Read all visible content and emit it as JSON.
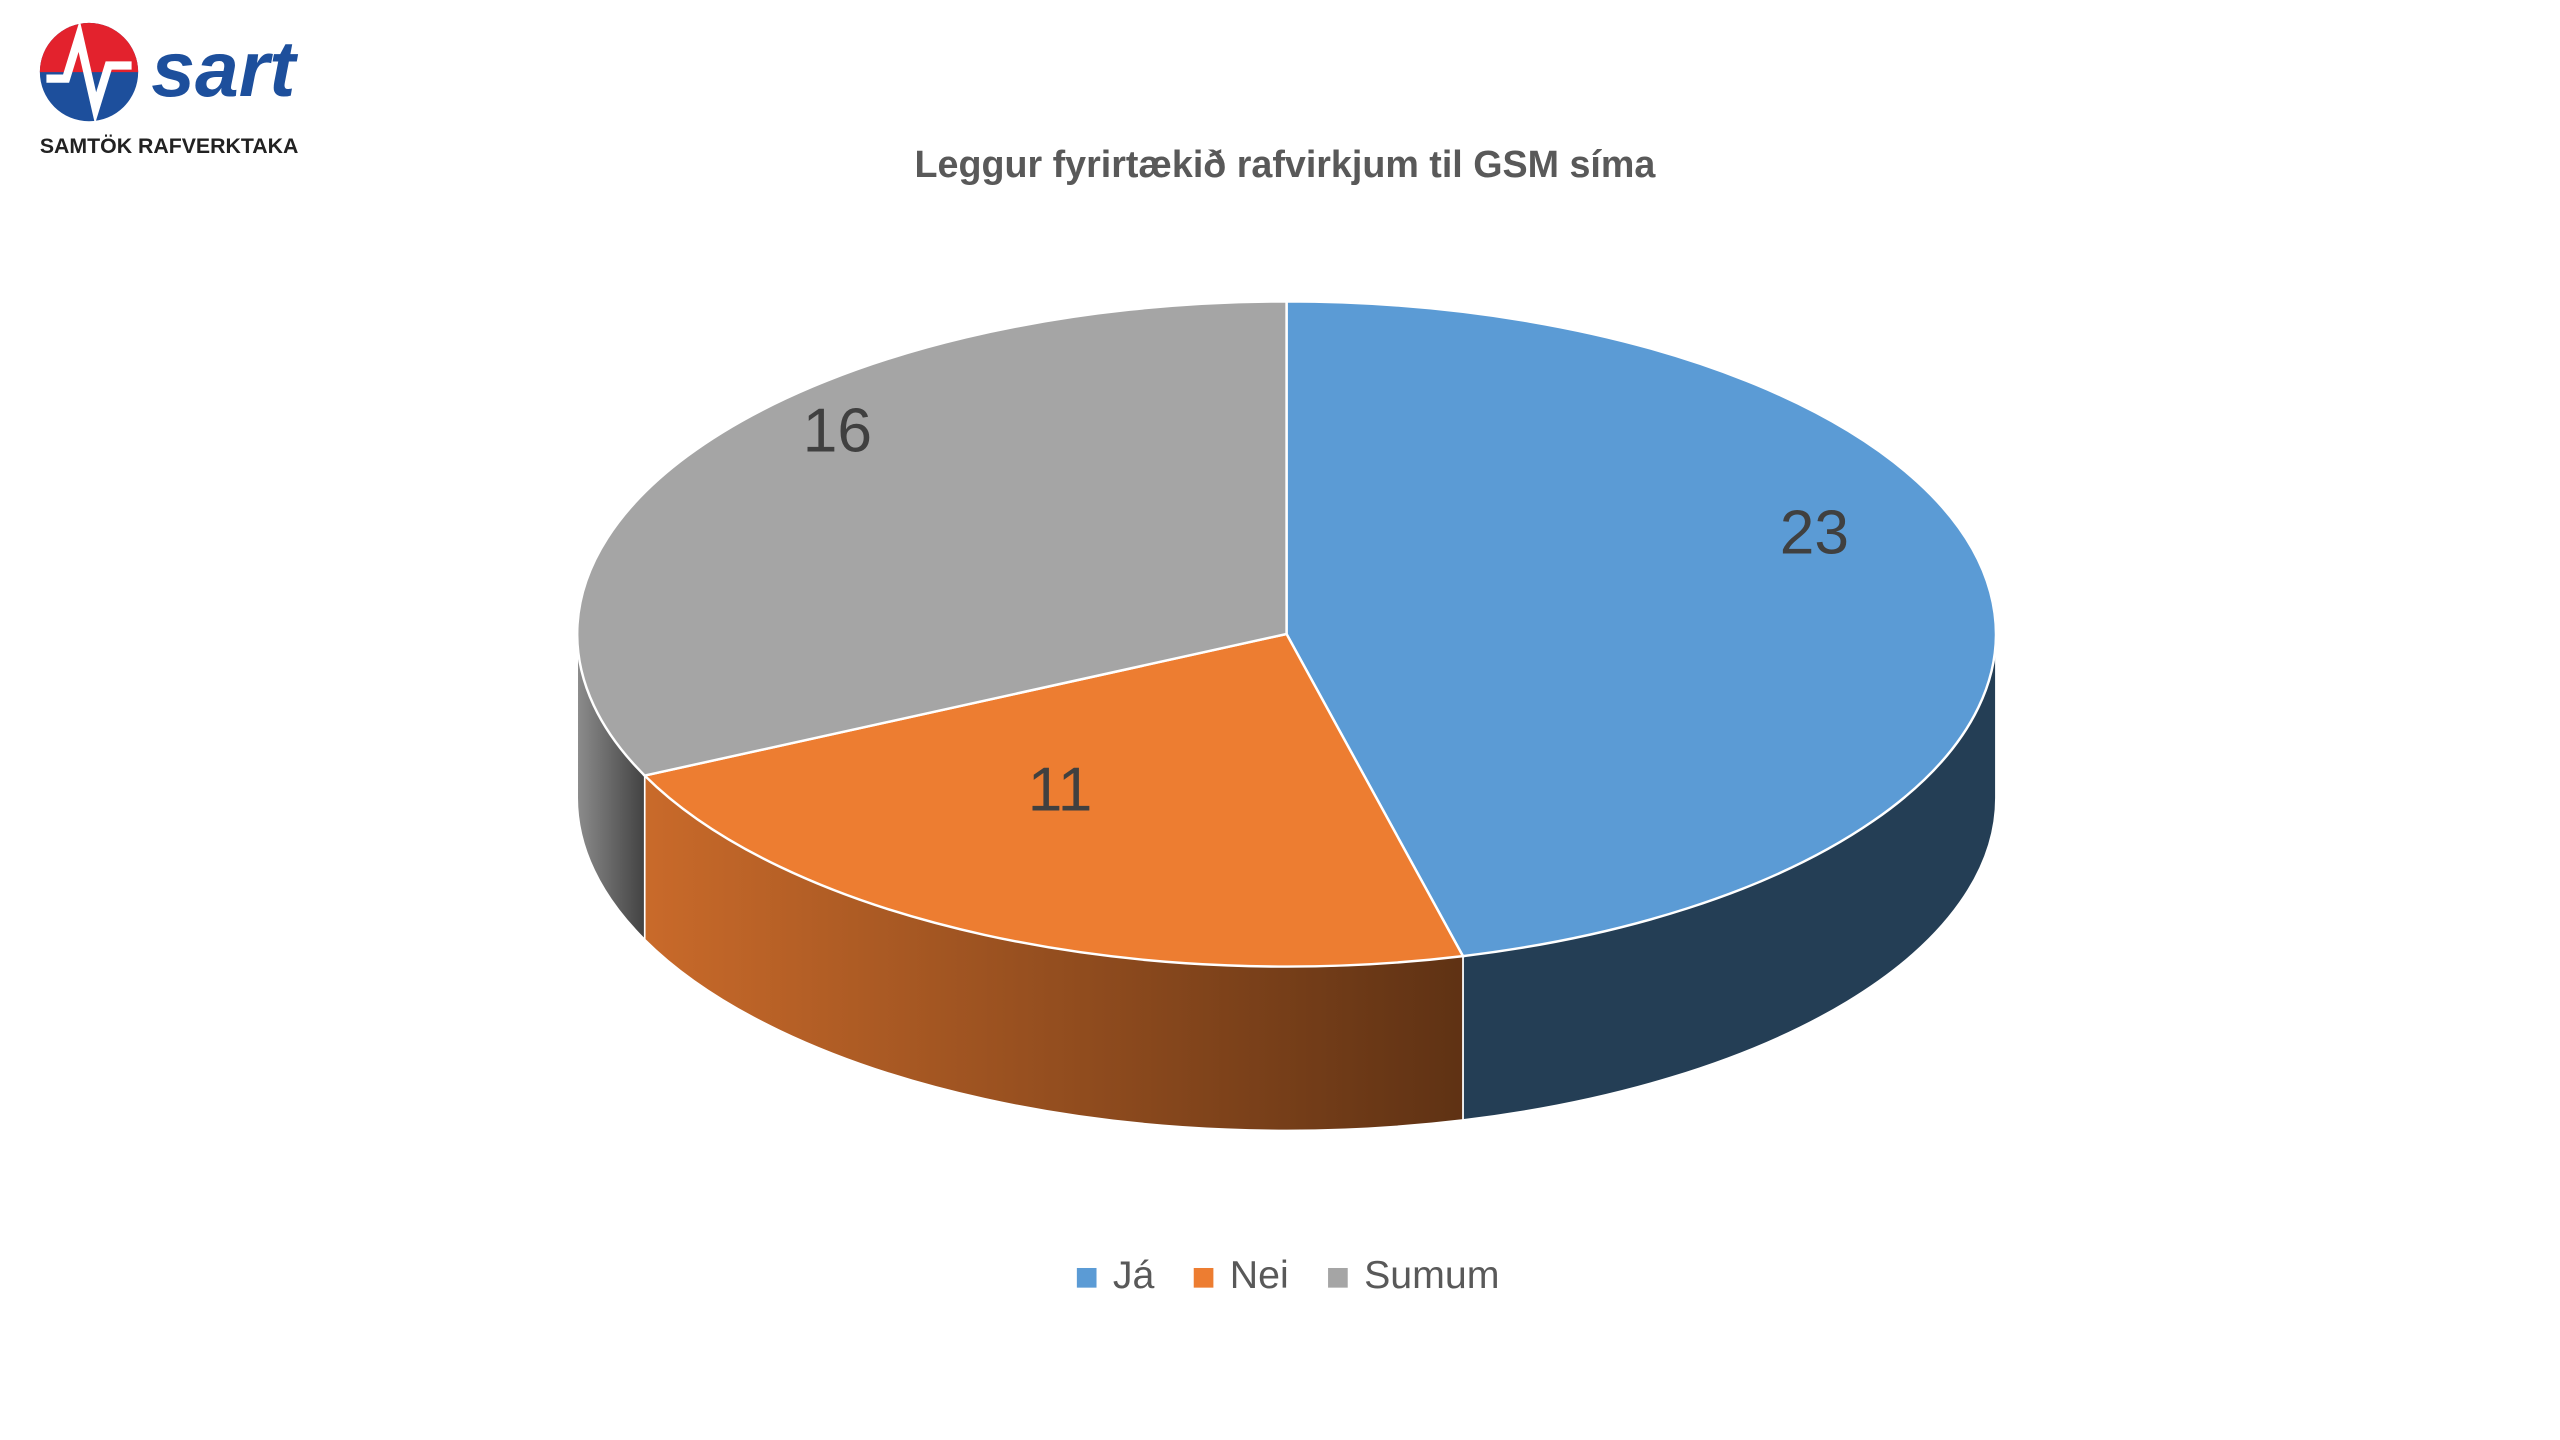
{
  "logo": {
    "name": "sart",
    "tagline": "SAMTÖK RAFVERKTAKA"
  },
  "chart_data": {
    "type": "pie",
    "title": "Leggur fyrirtækið rafvirkjum til GSM síma",
    "categories": [
      "Já",
      "Nei",
      "Sumum"
    ],
    "values": [
      23,
      11,
      16
    ],
    "colors": [
      "#5b9bd5",
      "#ed7d31",
      "#a5a5a5"
    ],
    "legend": "bottom",
    "three_d": true
  }
}
